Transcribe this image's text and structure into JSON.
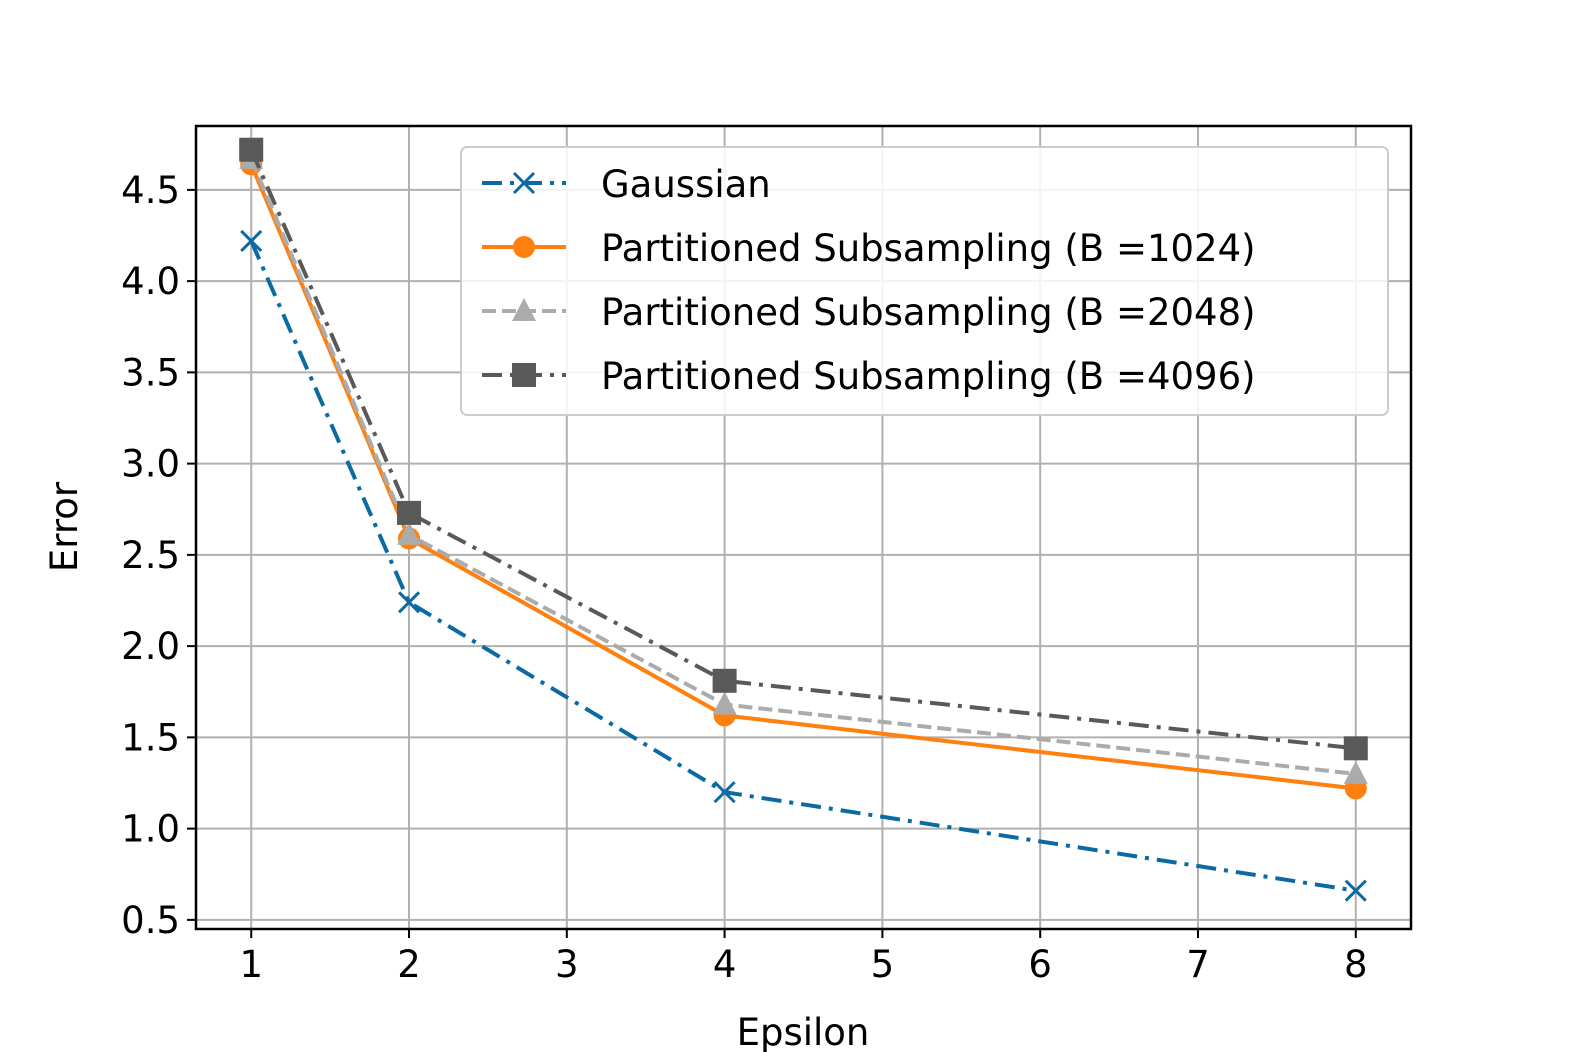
{
  "chart_data": {
    "type": "line",
    "title": "",
    "xlabel": "Epsilon",
    "ylabel": "Error",
    "xlim": [
      0.65,
      8.35
    ],
    "ylim": [
      0.45,
      4.85
    ],
    "x_ticks": [
      1,
      2,
      3,
      4,
      5,
      6,
      7,
      8
    ],
    "x_tick_labels": [
      "1",
      "2",
      "3",
      "4",
      "5",
      "6",
      "7",
      "8"
    ],
    "y_ticks": [
      0.5,
      1.0,
      1.5,
      2.0,
      2.5,
      3.0,
      3.5,
      4.0,
      4.5
    ],
    "y_tick_labels": [
      "0.5",
      "1.0",
      "1.5",
      "2.0",
      "2.5",
      "3.0",
      "3.5",
      "4.0",
      "4.5"
    ],
    "grid": true,
    "legend_position": "top-right",
    "x": [
      1,
      2,
      4,
      8
    ],
    "series": [
      {
        "name": "Gaussian",
        "values": [
          4.22,
          2.24,
          1.2,
          0.66
        ],
        "color": "#0b6aa2",
        "marker": "x",
        "dash": "dashdot"
      },
      {
        "name": "Partitioned Subsampling (B =1024)",
        "values": [
          4.64,
          2.59,
          1.62,
          1.22
        ],
        "color": "#ff800e",
        "marker": "circle",
        "dash": "solid"
      },
      {
        "name": "Partitioned Subsampling (B =2048)",
        "values": [
          4.67,
          2.61,
          1.68,
          1.3
        ],
        "color": "#ababab",
        "marker": "triangle",
        "dash": "dashed"
      },
      {
        "name": "Partitioned Subsampling (B =4096)",
        "values": [
          4.72,
          2.73,
          1.81,
          1.44
        ],
        "color": "#595959",
        "marker": "square",
        "dash": "dashdot"
      }
    ]
  }
}
